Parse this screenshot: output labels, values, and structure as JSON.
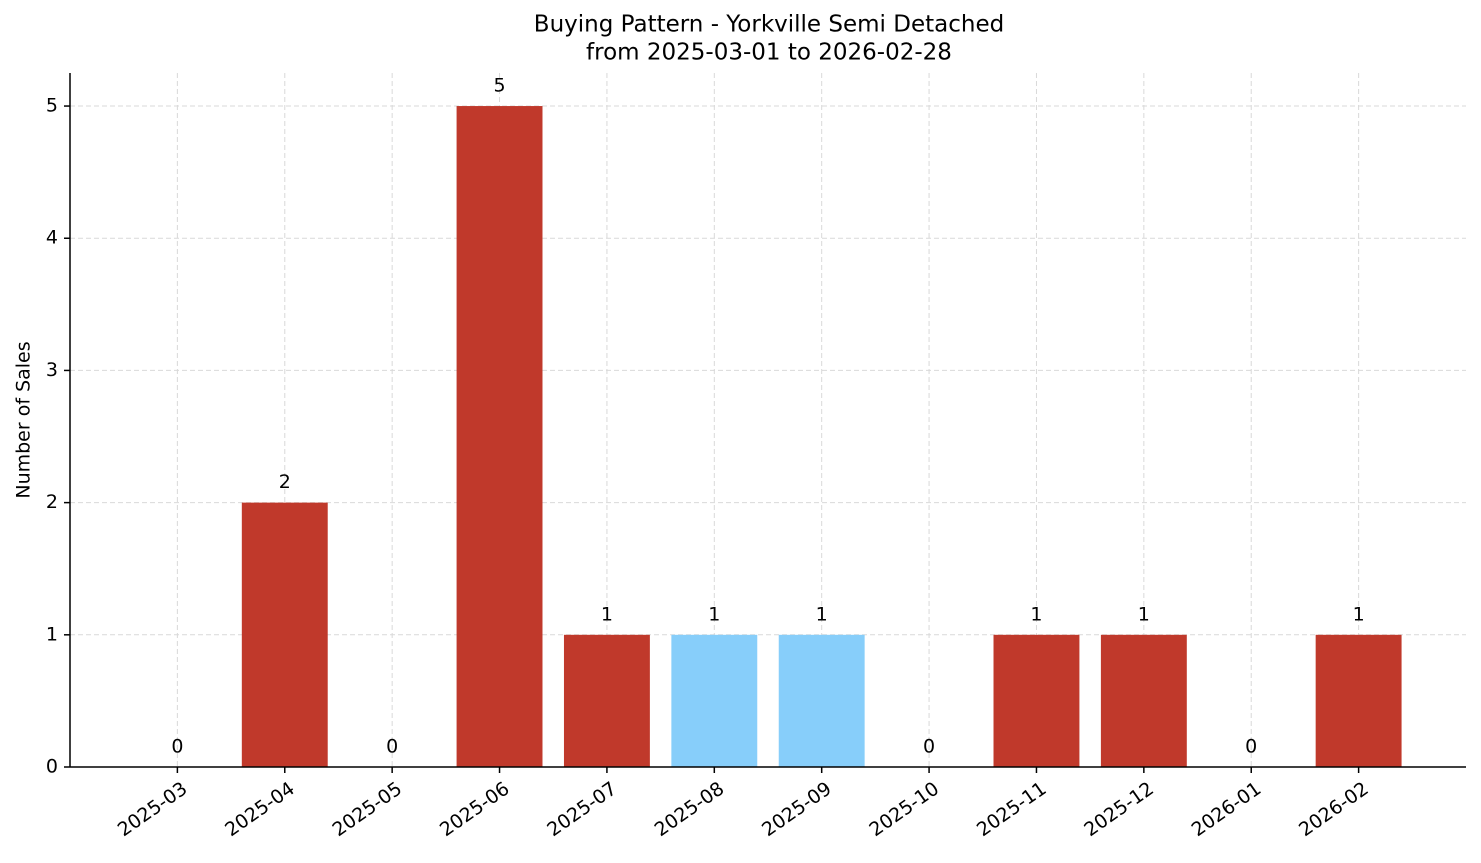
{
  "chart_data": {
    "type": "bar",
    "title": "Buying Pattern - Yorkville Semi Detached",
    "subtitle": "from 2025-03-01 to 2026-02-28",
    "y_label": "Number of Sales",
    "categories": [
      "2025-03",
      "2025-04",
      "2025-05",
      "2025-06",
      "2025-07",
      "2025-08",
      "2025-09",
      "2025-10",
      "2025-11",
      "2025-12",
      "2026-01",
      "2026-02"
    ],
    "values": [
      0,
      2,
      0,
      5,
      1,
      1,
      1,
      0,
      1,
      1,
      0,
      1
    ],
    "colors": [
      "#c0392b",
      "#c0392b",
      "#c0392b",
      "#c0392b",
      "#c0392b",
      "#87cefa",
      "#87cefa",
      "#c0392b",
      "#c0392b",
      "#c0392b",
      "#c0392b",
      "#c0392b"
    ],
    "ylim": [
      0,
      5.25
    ],
    "yticks": [
      0,
      1,
      2,
      3,
      4,
      5
    ],
    "grid": true,
    "data_labels": true
  }
}
